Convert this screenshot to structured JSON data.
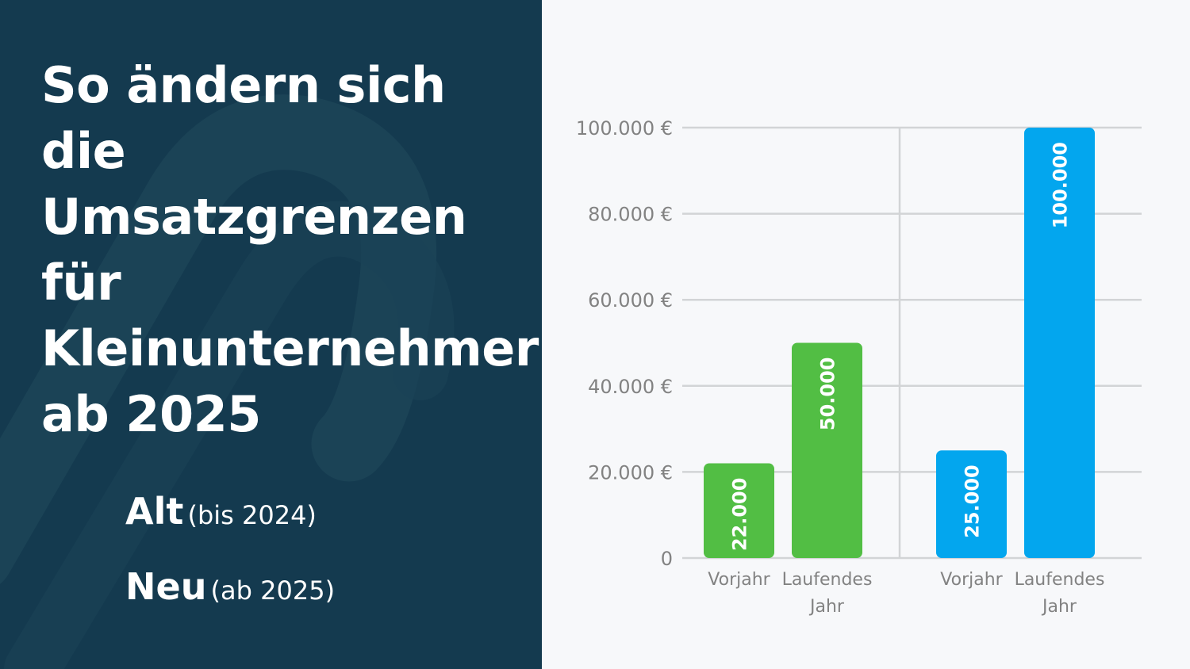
{
  "title": "So ändern sich die Umsatzgrenzen für Kleinunternehmer ab 2025",
  "legend": [
    {
      "label": "Alt",
      "detail": "(bis 2024)",
      "color": "#52be44"
    },
    {
      "label": "Neu",
      "detail": "(ab 2025)",
      "color": "#03a6ee"
    }
  ],
  "colors": {
    "panel": "#143a4f",
    "decor": "#1b4356",
    "background": "#f7f8fa",
    "grid": "#d2d4d6",
    "axis_text": "#828282",
    "old": "#52be44",
    "new": "#03a6ee"
  },
  "chart_data": {
    "type": "bar",
    "y_ticks": [
      {
        "value": 0,
        "label": "0"
      },
      {
        "value": 20000,
        "label": "20.000 €"
      },
      {
        "value": 40000,
        "label": "40.000 €"
      },
      {
        "value": 60000,
        "label": "60.000 €"
      },
      {
        "value": 80000,
        "label": "80.000 €"
      },
      {
        "value": 100000,
        "label": "100.000 €"
      }
    ],
    "ylim": [
      0,
      100000
    ],
    "grid": true,
    "groups": [
      {
        "series": "Alt",
        "color": "#52be44",
        "bars": [
          {
            "category": [
              "Vorjahr"
            ],
            "value": 22000,
            "label": "22.000"
          },
          {
            "category": [
              "Laufendes",
              "Jahr"
            ],
            "value": 50000,
            "label": "50.000"
          }
        ]
      },
      {
        "series": "Neu",
        "color": "#03a6ee",
        "bars": [
          {
            "category": [
              "Vorjahr"
            ],
            "value": 25000,
            "label": "25.000"
          },
          {
            "category": [
              "Laufendes",
              "Jahr"
            ],
            "value": 100000,
            "label": "100.000"
          }
        ]
      }
    ]
  }
}
